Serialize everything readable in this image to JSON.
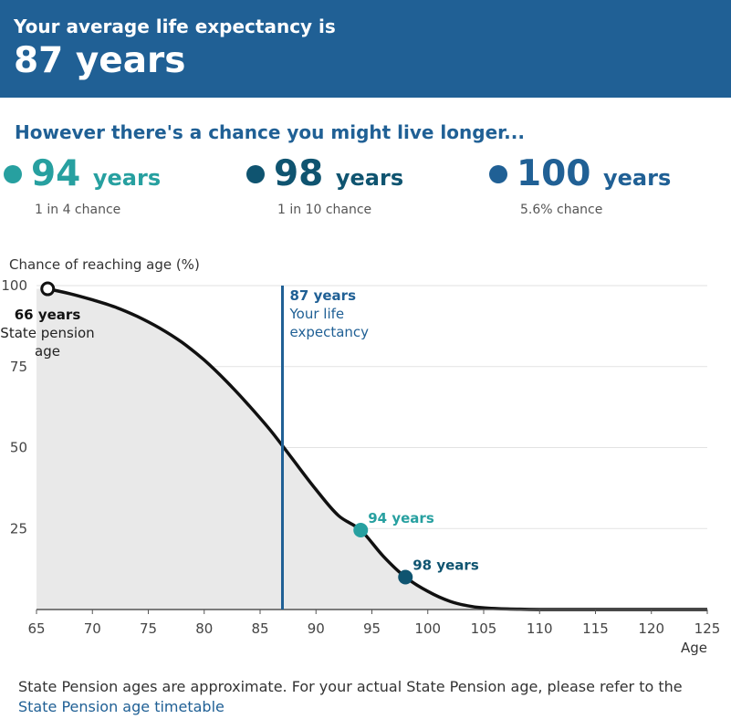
{
  "header": {
    "title": "Your average life expectancy is",
    "value": "87 years"
  },
  "subheading": "However there's a chance you might live longer...",
  "stats": [
    {
      "value": "94",
      "unit": "years",
      "chance": "1 in 4 chance",
      "color": "#27a0a0"
    },
    {
      "value": "98",
      "unit": "years",
      "chance": "1 in 10 chance",
      "color": "#0f5470"
    },
    {
      "value": "100",
      "unit": "years",
      "chance": "5.6% chance",
      "color": "#206095"
    }
  ],
  "chart_data": {
    "type": "area",
    "ylabel": "Chance of reaching age (%)",
    "xlabel": "Age",
    "xlim": [
      65,
      125
    ],
    "ylim": [
      0,
      100
    ],
    "xticks": [
      65,
      70,
      75,
      80,
      85,
      90,
      95,
      100,
      105,
      110,
      115,
      120,
      125
    ],
    "yticks": [
      25,
      50,
      75,
      100
    ],
    "grid": true,
    "series": [
      {
        "x": [
          66,
          68,
          70,
          72,
          74,
          76,
          78,
          80,
          82,
          84,
          86,
          88,
          90,
          92,
          94,
          96,
          98,
          100,
          102,
          104,
          106,
          108,
          110,
          115,
          120,
          125
        ],
        "y": [
          99,
          97.5,
          95.6,
          93.4,
          90.5,
          86.9,
          82.5,
          77,
          70.4,
          63,
          55,
          46,
          37,
          29,
          24.5,
          16.5,
          10,
          5.6,
          2.5,
          0.9,
          0.3,
          0.1,
          0,
          0,
          0,
          0
        ]
      }
    ],
    "annotations": [
      {
        "x": 66,
        "y": 99,
        "label": "66 years",
        "text": "State pension age"
      },
      {
        "x": 87,
        "label": "87 years",
        "text": "Your life expectancy"
      },
      {
        "x": 94,
        "y": 24.5,
        "label": "94 years",
        "color": "#27a0a0"
      },
      {
        "x": 98,
        "y": 10,
        "label": "98 years",
        "color": "#0f5470"
      }
    ]
  },
  "footer": {
    "text": "State Pension ages are approximate. For your actual State Pension age, please refer to the ",
    "link": "State Pension age timetable"
  }
}
